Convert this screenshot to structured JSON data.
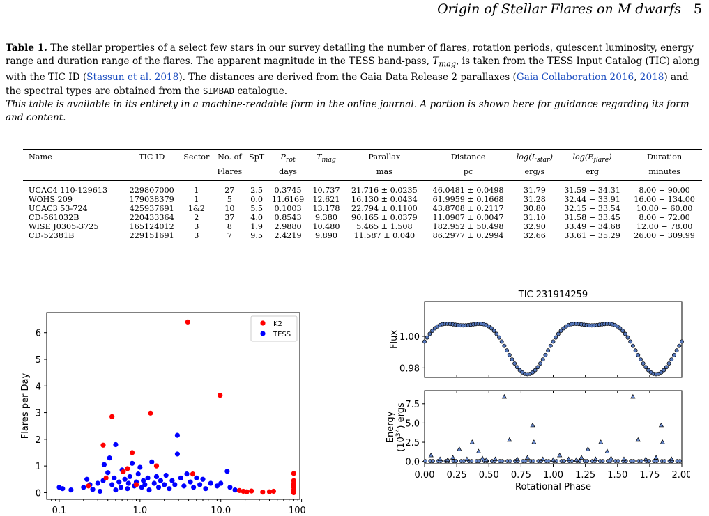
{
  "running_head": {
    "title": "Origin of Stellar Flares on M dwarfs",
    "page": "5"
  },
  "caption": {
    "label": "Table 1.",
    "p1": " The stellar properties of a select few stars in our survey detailing the number of flares, rotation periods, quiescent luminosity, energy range and duration range of the flares. The apparent magnitude in the TESS band-pass, ",
    "tmag": "T",
    "tmag_sub": "mag",
    "p2": ", is taken from the TESS Input Catalog (TIC) along with the TIC ID (",
    "ref1": "Stassun et al. 2018",
    "p3": "). The distances are derived from the Gaia Data Release 2 parallaxes (",
    "ref2": "Gaia Collaboration 2016",
    "p4": ", ",
    "ref3": "2018",
    "p5": ") and the spectral types are obtained from the ",
    "simbad": "SIMBAD",
    "p6": " catalogue.",
    "note": "This table is available in its entirety in a machine-readable form in the online journal. A portion is shown here for guidance regarding its form and content."
  },
  "table": {
    "headers": [
      {
        "top": "Name",
        "sub": ""
      },
      {
        "top": "TIC ID",
        "sub": ""
      },
      {
        "top": "Sector",
        "sub": ""
      },
      {
        "top": "No. of",
        "sub": "Flares"
      },
      {
        "top": "SpT",
        "sub": ""
      },
      {
        "top": "P",
        "top_sub": "rot",
        "sub": "days"
      },
      {
        "top": "T",
        "top_sub": "mag",
        "sub": ""
      },
      {
        "top": "Parallax",
        "sub": "mas"
      },
      {
        "top": "Distance",
        "sub": "pc"
      },
      {
        "top": "log(L",
        "top_sub": "star",
        "top_end": ")",
        "sub": "erg/s"
      },
      {
        "top": "log(E",
        "top_sub": "flare",
        "top_end": ")",
        "sub": "erg"
      },
      {
        "top": "Duration",
        "sub": "minutes"
      }
    ],
    "rows": [
      [
        "UCAC4 110-129613",
        "229807000",
        "1",
        "27",
        "2.5",
        "0.3745",
        "10.737",
        "21.716 ± 0.0235",
        "46.0481 ± 0.0498",
        "31.79",
        "31.59 − 34.31",
        "8.00 − 90.00"
      ],
      [
        "WOHS 209",
        "179038379",
        "1",
        "5",
        "0.0",
        "11.6169",
        "12.621",
        "16.130 ± 0.0434",
        "61.9959 ± 0.1668",
        "31.28",
        "32.44 − 33.91",
        "16.00 − 134.00"
      ],
      [
        "UCAC3 53-724",
        "425937691",
        "1&2",
        "10",
        "5.5",
        "0.1003",
        "13.178",
        "22.794 ± 0.1100",
        "43.8708 ± 0.2117",
        "30.80",
        "32.15 − 33.54",
        "10.00 − 60.00"
      ],
      [
        "CD-561032B",
        "220433364",
        "2",
        "37",
        "4.0",
        "0.8543",
        "9.380",
        "90.165 ± 0.0379",
        "11.0907 ± 0.0047",
        "31.10",
        "31.58 − 33.45",
        "8.00 − 72.00"
      ],
      [
        "WISE J0305-3725",
        "165124012",
        "3",
        "8",
        "1.9",
        "2.9880",
        "10.480",
        "5.465 ± 1.508",
        "182.952 ± 50.498",
        "32.90",
        "33.49 − 34.68",
        "12.00 − 78.00"
      ],
      [
        "CD-52381B",
        "229151691",
        "3",
        "7",
        "9.5",
        "2.4219",
        "9.890",
        "11.587 ± 0.040",
        "86.2977 ± 0.2994",
        "32.66",
        "33.61 − 35.29",
        "26.00 − 309.99"
      ]
    ]
  },
  "chart_data": [
    {
      "type": "scatter",
      "title": "",
      "xlabel": "",
      "ylabel": "Flares per Day",
      "xscale": "log",
      "xlim": [
        0.07,
        95
      ],
      "ylim": [
        -0.25,
        6.75
      ],
      "xticks": [
        "0.1",
        "1.0",
        "10.0",
        "100.0"
      ],
      "yticks": [
        "0",
        "1",
        "2",
        "3",
        "4",
        "5",
        "6"
      ],
      "legend": "top-right",
      "colors": {
        "K2": "#ff0000",
        "TESS": "#0000ff"
      },
      "series": [
        {
          "name": "K2",
          "points": [
            [
              0.23,
              0.25
            ],
            [
              0.35,
              1.78
            ],
            [
              0.38,
              0.55
            ],
            [
              0.45,
              2.85
            ],
            [
              0.62,
              0.78
            ],
            [
              0.7,
              0.9
            ],
            [
              0.8,
              1.5
            ],
            [
              0.9,
              0.3
            ],
            [
              1.35,
              2.98
            ],
            [
              1.6,
              1.0
            ],
            [
              3.9,
              6.4
            ],
            [
              4.5,
              0.7
            ],
            [
              9.8,
              3.65
            ],
            [
              17,
              0.08
            ],
            [
              19,
              0.05
            ],
            [
              21,
              0.03
            ],
            [
              24,
              0.06
            ],
            [
              33,
              0.02
            ],
            [
              40,
              0.03
            ],
            [
              45,
              0.05
            ],
            [
              80,
              0.72
            ],
            [
              80,
              0.45
            ],
            [
              80,
              0.35
            ],
            [
              80,
              0.28
            ],
            [
              80,
              0.2
            ],
            [
              80,
              0.1
            ],
            [
              80,
              0.05
            ],
            [
              80,
              0.0
            ]
          ]
        },
        {
          "name": "TESS",
          "points": [
            [
              0.1,
              0.2
            ],
            [
              0.11,
              0.15
            ],
            [
              0.14,
              0.1
            ],
            [
              0.2,
              0.2
            ],
            [
              0.22,
              0.5
            ],
            [
              0.24,
              0.3
            ],
            [
              0.26,
              0.12
            ],
            [
              0.3,
              0.35
            ],
            [
              0.32,
              0.05
            ],
            [
              0.35,
              0.45
            ],
            [
              0.36,
              1.05
            ],
            [
              0.4,
              0.75
            ],
            [
              0.42,
              1.3
            ],
            [
              0.45,
              0.3
            ],
            [
              0.48,
              0.55
            ],
            [
              0.5,
              1.8
            ],
            [
              0.5,
              0.1
            ],
            [
              0.55,
              0.4
            ],
            [
              0.58,
              0.2
            ],
            [
              0.6,
              0.85
            ],
            [
              0.65,
              0.5
            ],
            [
              0.7,
              0.15
            ],
            [
              0.72,
              0.35
            ],
            [
              0.75,
              0.6
            ],
            [
              0.8,
              1.1
            ],
            [
              0.85,
              0.25
            ],
            [
              0.9,
              0.4
            ],
            [
              0.95,
              0.7
            ],
            [
              1.0,
              0.95
            ],
            [
              1.05,
              0.2
            ],
            [
              1.1,
              0.45
            ],
            [
              1.15,
              0.3
            ],
            [
              1.25,
              0.55
            ],
            [
              1.3,
              0.1
            ],
            [
              1.4,
              1.15
            ],
            [
              1.5,
              0.35
            ],
            [
              1.6,
              0.6
            ],
            [
              1.7,
              0.2
            ],
            [
              1.8,
              0.45
            ],
            [
              2.0,
              0.3
            ],
            [
              2.1,
              0.65
            ],
            [
              2.3,
              0.15
            ],
            [
              2.5,
              0.45
            ],
            [
              2.7,
              0.3
            ],
            [
              2.9,
              2.15
            ],
            [
              2.9,
              1.45
            ],
            [
              3.2,
              0.55
            ],
            [
              3.5,
              0.25
            ],
            [
              3.8,
              0.7
            ],
            [
              4.2,
              0.4
            ],
            [
              4.6,
              0.2
            ],
            [
              5.0,
              0.55
            ],
            [
              5.5,
              0.3
            ],
            [
              6.0,
              0.5
            ],
            [
              6.5,
              0.15
            ],
            [
              7.5,
              0.35
            ],
            [
              9,
              0.25
            ],
            [
              10,
              0.35
            ],
            [
              12,
              0.8
            ],
            [
              13,
              0.2
            ],
            [
              15,
              0.1
            ]
          ]
        }
      ]
    },
    {
      "type": "line",
      "title": "TIC 231914259",
      "xlabel": "Rotational Phase",
      "panels": [
        {
          "ylabel": "Flux",
          "yticks": [
            "0.98",
            "1.00"
          ],
          "ylim": [
            0.974,
            1.022
          ],
          "curve_min": 0.976,
          "curve_max": 1.018,
          "mark_color": "#5577bb"
        },
        {
          "ylabel": "Energy",
          "ylabel2": "(10",
          "ylabel2_sup": "34",
          "ylabel2_end": ") ergs",
          "yticks": [
            "0.0",
            "2.5",
            "5.0",
            "7.5"
          ],
          "ylim": [
            -0.3,
            9.2
          ],
          "mark_color": "#6688cc",
          "flares": [
            [
              0.05,
              0.8
            ],
            [
              0.12,
              0.3
            ],
            [
              0.18,
              0.2
            ],
            [
              0.22,
              0.5
            ],
            [
              0.27,
              1.6
            ],
            [
              0.33,
              0.3
            ],
            [
              0.37,
              2.5
            ],
            [
              0.42,
              1.3
            ],
            [
              0.45,
              0.4
            ],
            [
              0.48,
              0.2
            ],
            [
              0.55,
              0.3
            ],
            [
              0.62,
              8.4
            ],
            [
              0.66,
              2.8
            ],
            [
              0.72,
              0.3
            ],
            [
              0.8,
              0.5
            ],
            [
              0.84,
              4.7
            ],
            [
              0.85,
              2.5
            ],
            [
              0.92,
              0.3
            ],
            [
              1.0,
              0.2
            ],
            [
              1.05,
              0.8
            ],
            [
              1.12,
              0.3
            ],
            [
              1.18,
              0.2
            ],
            [
              1.22,
              0.5
            ],
            [
              1.27,
              1.6
            ],
            [
              1.33,
              0.3
            ],
            [
              1.37,
              2.5
            ],
            [
              1.42,
              1.3
            ],
            [
              1.45,
              0.4
            ],
            [
              1.55,
              0.3
            ],
            [
              1.62,
              8.4
            ],
            [
              1.66,
              2.8
            ],
            [
              1.72,
              0.3
            ],
            [
              1.8,
              0.5
            ],
            [
              1.84,
              4.7
            ],
            [
              1.85,
              2.5
            ],
            [
              1.92,
              0.3
            ]
          ]
        }
      ],
      "xticks": [
        "0.00",
        "0.25",
        "0.50",
        "0.75",
        "1.00",
        "1.25",
        "1.50",
        "1.75",
        "2.00"
      ],
      "xlim": [
        0,
        2
      ]
    }
  ]
}
